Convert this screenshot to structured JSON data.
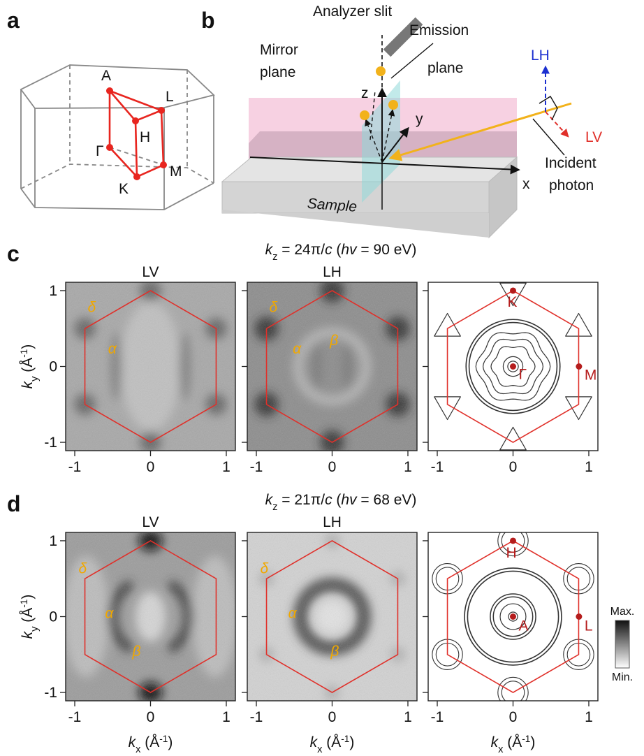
{
  "panel_a": {
    "label": "a",
    "points": [
      "A",
      "L",
      "H",
      "Γ",
      "K",
      "M"
    ]
  },
  "panel_b": {
    "label": "b",
    "analyzer_slit": "Analyzer slit",
    "mirror_plane": [
      "Mirror",
      "plane"
    ],
    "emission_plane": [
      "Emission",
      "plane"
    ],
    "axes": [
      "z",
      "y",
      "x"
    ],
    "polarizations": [
      "LH",
      "LV"
    ],
    "incident_photon": [
      "Incident",
      "photon"
    ],
    "sample": "Sample"
  },
  "rows": [
    {
      "label": "c",
      "title": [
        "k",
        "z",
        " = 24π/",
        "c",
        " (",
        "hv",
        " = 90 eV)"
      ],
      "maps": [
        {
          "title": "LV",
          "bands": [
            "δ",
            "α"
          ]
        },
        {
          "title": "LH",
          "bands": [
            "δ",
            "α",
            "β"
          ]
        }
      ],
      "points": [
        "K",
        "Γ",
        "M"
      ]
    },
    {
      "label": "d",
      "title": [
        "k",
        "z",
        " = 21π/",
        "c",
        " (",
        "hv",
        " = 68 eV)"
      ],
      "maps": [
        {
          "title": "LV",
          "bands": [
            "δ",
            "α",
            "β"
          ]
        },
        {
          "title": "LH",
          "bands": [
            "δ",
            "α",
            "β"
          ]
        }
      ],
      "points": [
        "H",
        "A",
        "L"
      ]
    }
  ],
  "axes": {
    "xlabel": [
      "k",
      "x",
      " (Å",
      "-1",
      ")"
    ],
    "ylabel": [
      "k",
      "y",
      " (Å",
      "-1",
      ")"
    ],
    "xlim": [
      -1.12,
      1.12
    ],
    "ylim": [
      -1.11,
      1.11
    ],
    "xticks": [
      -1,
      0,
      1
    ],
    "yticks": [
      -1,
      0,
      1
    ]
  },
  "colorbar": {
    "max": "Max.",
    "min": "Min."
  }
}
